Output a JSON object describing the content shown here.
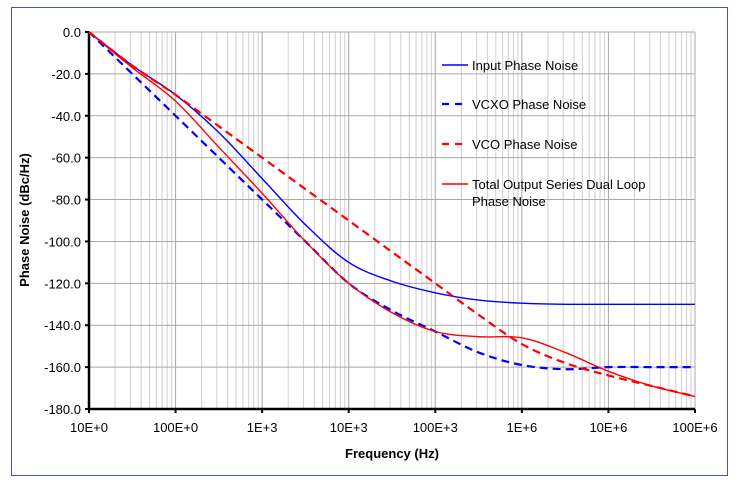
{
  "chart_data": {
    "type": "line",
    "xlabel": "Frequency (Hz)",
    "ylabel": "Phase Noise (dBc/Hz)",
    "x_scale": "log",
    "xlim": [
      10,
      100000000
    ],
    "ylim": [
      -180,
      0
    ],
    "grid": true,
    "legend_position": "top-right",
    "x_tick_labels": [
      "10E+0",
      "100E+0",
      "1E+3",
      "10E+3",
      "100E+3",
      "1E+6",
      "10E+6",
      "100E+6"
    ],
    "x_tick_values": [
      10,
      100,
      1000,
      10000,
      100000,
      1000000,
      10000000,
      100000000
    ],
    "y_tick_labels": [
      "0.0",
      "-20.0",
      "-40.0",
      "-60.0",
      "-80.0",
      "-100.0",
      "-120.0",
      "-140.0",
      "-160.0",
      "-180.0"
    ],
    "y_tick_values": [
      0,
      -20,
      -40,
      -60,
      -80,
      -100,
      -120,
      -140,
      -160,
      -180
    ],
    "x": [
      10,
      31.6,
      100,
      316,
      1000,
      3160,
      10000,
      31600,
      100000,
      316000,
      1000000,
      3160000,
      10000000,
      31600000,
      100000000
    ],
    "series": [
      {
        "name": "Input Phase Noise",
        "color": "#0000ff",
        "dash": false,
        "values": [
          0,
          -16,
          -30,
          -48,
          -70,
          -92,
          -110,
          -119,
          -124.5,
          -128,
          -129.5,
          -130,
          -130,
          -130,
          -130
        ]
      },
      {
        "name": "VCXO Phase Noise",
        "color": "#0000ff",
        "dash": true,
        "values": [
          0,
          -20,
          -40,
          -60,
          -80,
          -100,
          -120,
          -133,
          -143,
          -153,
          -159,
          -161,
          -160,
          -160,
          -160
        ]
      },
      {
        "name": "VCO Phase Noise",
        "color": "#ff0000",
        "dash": true,
        "values": [
          0,
          -16,
          -30,
          -45,
          -60,
          -75,
          -90,
          -105,
          -120,
          -135,
          -149,
          -158,
          -164,
          -169,
          -174
        ]
      },
      {
        "name": "Total Output Series Dual Loop\nPhase Noise",
        "color": "#ff0000",
        "dash": false,
        "values": [
          0,
          -17,
          -33,
          -55,
          -77,
          -100,
          -120,
          -134,
          -143,
          -145.5,
          -146,
          -153,
          -162,
          -169,
          -174
        ]
      }
    ]
  }
}
